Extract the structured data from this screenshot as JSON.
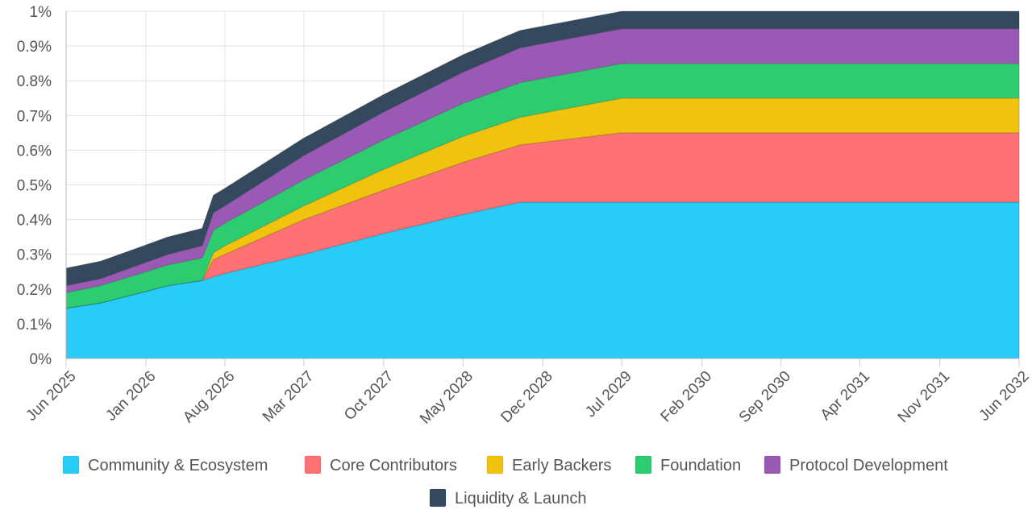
{
  "chart_data": {
    "type": "area",
    "stacked": true,
    "x": [
      "2025-06-01",
      "2025-09-01",
      "2025-12-01",
      "2026-03-01",
      "2026-06-01",
      "2026-07-01",
      "2026-08-01",
      "2027-03-01",
      "2027-10-01",
      "2028-05-01",
      "2028-10-01",
      "2029-07-01",
      "2030-02-01",
      "2030-09-01",
      "2031-04-01",
      "2031-11-01",
      "2032-06-01"
    ],
    "x_ticks": [
      "Jun 2025",
      "Jan 2026",
      "Aug 2026",
      "Mar 2027",
      "Oct 2027",
      "May 2028",
      "Dec 2028",
      "Jul 2029",
      "Feb 2030",
      "Sep 2030",
      "Apr 2031",
      "Nov 2031",
      "Jun 2032"
    ],
    "y_ticks": [
      "0%",
      "0.1%",
      "0.2%",
      "0.3%",
      "0.4%",
      "0.5%",
      "0.6%",
      "0.7%",
      "0.8%",
      "0.9%",
      "1%"
    ],
    "ylim": [
      0,
      1
    ],
    "grid": true,
    "legend_position": "bottom",
    "series": [
      {
        "name": "Community & Ecosystem",
        "color": "#29CCF7",
        "values": [
          0.145,
          0.16,
          0.185,
          0.21,
          0.225,
          0.235,
          0.245,
          0.3,
          0.36,
          0.415,
          0.45,
          0.45,
          0.45,
          0.45,
          0.45,
          0.45,
          0.45
        ]
      },
      {
        "name": "Core Contributors",
        "color": "#FF7174",
        "values": [
          0,
          0,
          0,
          0,
          0,
          0.05,
          0.055,
          0.1,
          0.125,
          0.15,
          0.165,
          0.2,
          0.2,
          0.2,
          0.2,
          0.2,
          0.2
        ]
      },
      {
        "name": "Early Backers",
        "color": "#F0C30F",
        "values": [
          0,
          0,
          0,
          0,
          0,
          0.02,
          0.025,
          0.04,
          0.06,
          0.075,
          0.08,
          0.1,
          0.1,
          0.1,
          0.1,
          0.1,
          0.1
        ]
      },
      {
        "name": "Foundation",
        "color": "#2ECC71",
        "values": [
          0.045,
          0.05,
          0.055,
          0.06,
          0.065,
          0.065,
          0.065,
          0.075,
          0.085,
          0.095,
          0.1,
          0.1,
          0.1,
          0.1,
          0.1,
          0.1,
          0.1
        ]
      },
      {
        "name": "Protocol Development",
        "color": "#9B59B6",
        "values": [
          0.02,
          0.02,
          0.025,
          0.03,
          0.035,
          0.05,
          0.05,
          0.07,
          0.08,
          0.09,
          0.1,
          0.1,
          0.1,
          0.1,
          0.1,
          0.1,
          0.1
        ]
      },
      {
        "name": "Liquidity & Launch",
        "color": "#34495E",
        "values": [
          0.05,
          0.05,
          0.05,
          0.05,
          0.05,
          0.05,
          0.05,
          0.05,
          0.05,
          0.05,
          0.05,
          0.05,
          0.05,
          0.05,
          0.05,
          0.05,
          0.05
        ]
      }
    ]
  }
}
